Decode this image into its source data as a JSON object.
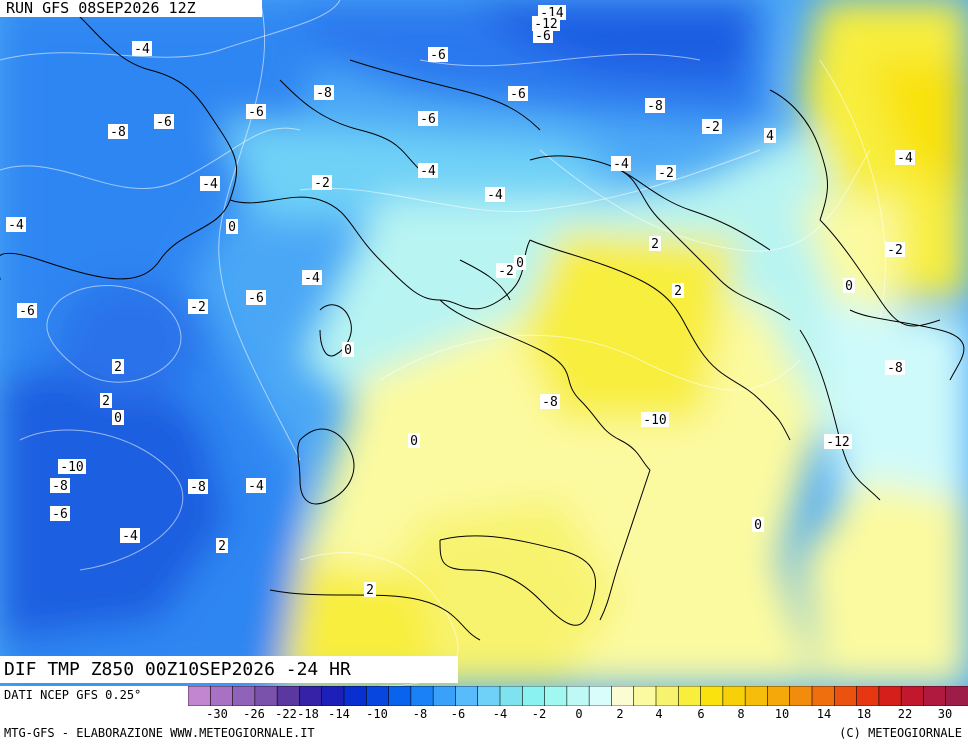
{
  "header": {
    "run_title": "RUN GFS 08SEP2026 12Z"
  },
  "field": {
    "title": "DIF TMP Z850 00Z10SEP2026 -24 HR"
  },
  "source": {
    "text": "DATI NCEP GFS 0.25°"
  },
  "footer": {
    "left": "MTG-GFS - ELABORAZIONE WWW.METEOGIORNALE.IT",
    "right": "(C) METEOGIORNALE"
  },
  "legend": {
    "ticks": [
      "-30",
      "-26",
      "-22",
      "-18",
      "-14",
      "-10",
      "-8",
      "-6",
      "-4",
      "-2",
      "0",
      "2",
      "4",
      "6",
      "8",
      "10",
      "14",
      "18",
      "22",
      "30"
    ],
    "colors": [
      "#c285d0",
      "#a971c4",
      "#9163b8",
      "#7a51ab",
      "#5a38a0",
      "#3522a6",
      "#1c20b8",
      "#0a2fd0",
      "#0846e0",
      "#0a63ee",
      "#1a82f6",
      "#3aa1fb",
      "#58bbfb",
      "#6fd1f7",
      "#7fe3ef",
      "#8bf2f2",
      "#a0f8f0",
      "#bff9f5",
      "#d9fdfb",
      "#fbfcd4",
      "#fbfaa0",
      "#f8f36e",
      "#f8ee3c",
      "#f9e20e",
      "#f8d00a",
      "#f6be0a",
      "#f4a80a",
      "#f28c0c",
      "#ef6e0e",
      "#ec520f",
      "#e73612",
      "#d41f1a",
      "#c2182e",
      "#b01a3e",
      "#9e1c48"
    ]
  },
  "labels": [
    {
      "t": "-14"
    },
    {
      "t": "-12"
    },
    {
      "t": "-6"
    },
    {
      "t": "-4"
    },
    {
      "t": "-6"
    },
    {
      "t": "-8"
    },
    {
      "t": "-6"
    },
    {
      "t": "-8"
    },
    {
      "t": "-6"
    },
    {
      "t": "-8"
    },
    {
      "t": "-6"
    },
    {
      "t": "-6"
    },
    {
      "t": "-2"
    },
    {
      "t": "4"
    },
    {
      "t": "-4"
    },
    {
      "t": "-4"
    },
    {
      "t": "-4"
    },
    {
      "t": "-4"
    },
    {
      "t": "-2"
    },
    {
      "t": "-2"
    },
    {
      "t": "-4"
    },
    {
      "t": "-4"
    },
    {
      "t": "0"
    },
    {
      "t": "2"
    },
    {
      "t": "-2"
    },
    {
      "t": "0"
    },
    {
      "t": "-2"
    },
    {
      "t": "-4"
    },
    {
      "t": "-6"
    },
    {
      "t": "2"
    },
    {
      "t": "0"
    },
    {
      "t": "-6"
    },
    {
      "t": "-2"
    },
    {
      "t": "0"
    },
    {
      "t": "-8"
    },
    {
      "t": "2"
    },
    {
      "t": "-8"
    },
    {
      "t": "2"
    },
    {
      "t": "-10"
    },
    {
      "t": "0"
    },
    {
      "t": "0"
    },
    {
      "t": "-12"
    },
    {
      "t": "-10"
    },
    {
      "t": "-8"
    },
    {
      "t": "-4"
    },
    {
      "t": "-8"
    },
    {
      "t": "0"
    },
    {
      "t": "-6"
    },
    {
      "t": "-4"
    },
    {
      "t": "2"
    },
    {
      "t": "2"
    }
  ]
}
